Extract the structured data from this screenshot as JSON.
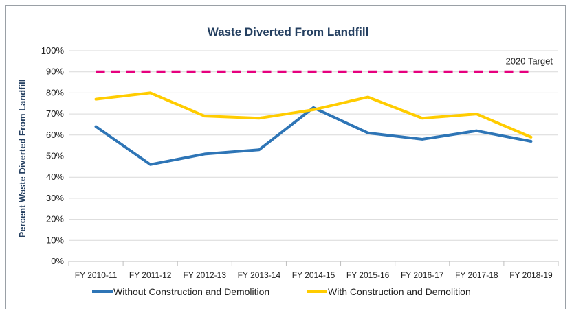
{
  "chart_data": {
    "type": "line",
    "title": "Waste Diverted From Landfill",
    "ylabel": "Percent Waste Diverted From Landfill",
    "xlabel": "",
    "categories": [
      "FY 2010-11",
      "FY 2011-12",
      "FY 2012-13",
      "FY 2013-14",
      "FY 2014-15",
      "FY 2015-16",
      "FY 2016-17",
      "FY 2017-18",
      "FY 2018-19"
    ],
    "ylim": [
      0,
      100
    ],
    "yticks": [
      "0%",
      "10%",
      "20%",
      "30%",
      "40%",
      "50%",
      "60%",
      "70%",
      "80%",
      "90%",
      "100%"
    ],
    "grid": true,
    "legend_position": "bottom",
    "series": [
      {
        "name": "Without Construction and Demolition",
        "color": "#2e75b6",
        "values": [
          64,
          46,
          51,
          53,
          73,
          61,
          58,
          62,
          57
        ]
      },
      {
        "name": "With Construction and Demolition",
        "color": "#ffcc00",
        "values": [
          77,
          80,
          69,
          68,
          72,
          78,
          68,
          70,
          59
        ]
      }
    ],
    "target": {
      "label": "2020 Target",
      "value": 90,
      "color": "#e6007e",
      "style": "dashed"
    }
  }
}
